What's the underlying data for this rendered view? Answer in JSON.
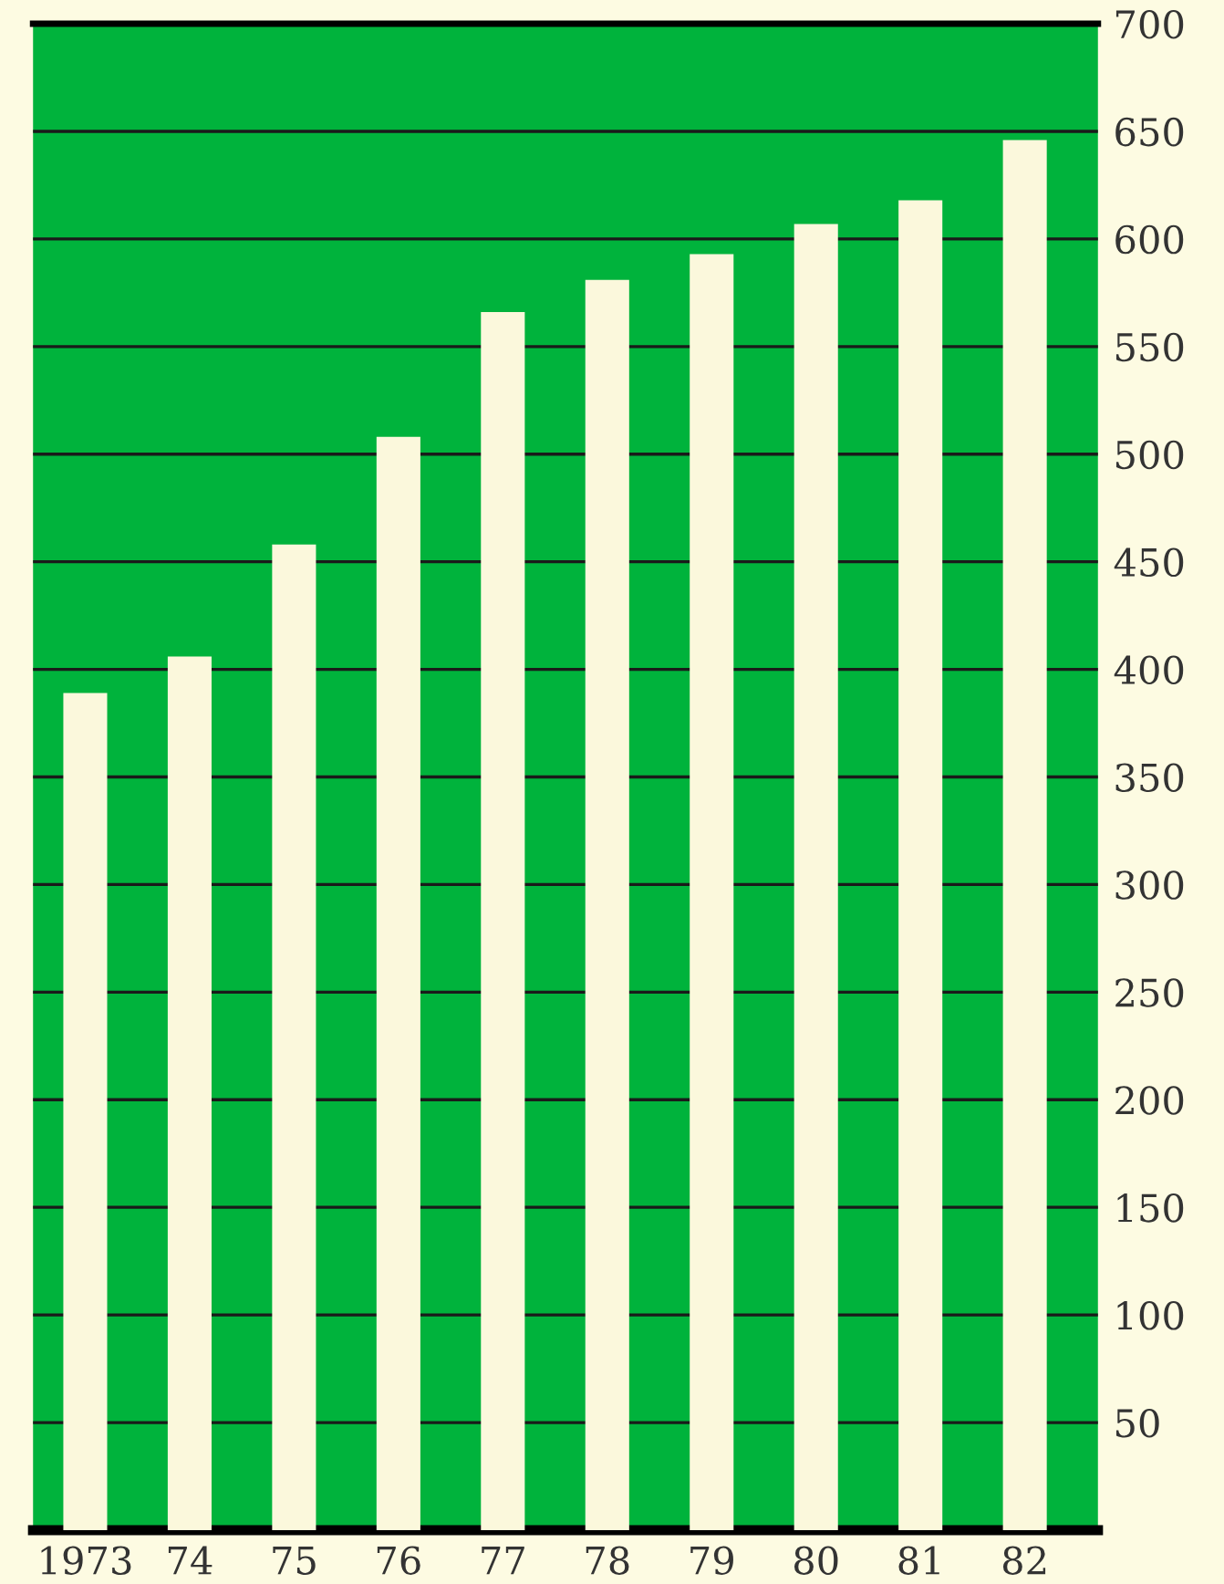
{
  "chart_data": {
    "type": "bar",
    "categories": [
      "1973",
      "74",
      "75",
      "76",
      "77",
      "78",
      "79",
      "80",
      "81",
      "82"
    ],
    "values": [
      389,
      406,
      458,
      508,
      566,
      581,
      593,
      607,
      618,
      646
    ],
    "color": "#fbf8dc",
    "ylim": [
      0,
      700
    ],
    "yticks": [
      {
        "value": 0,
        "label": null
      },
      50,
      100,
      150,
      200,
      250,
      300,
      350,
      400,
      450,
      500,
      550,
      600,
      650,
      700
    ],
    "grid": "y",
    "legend": false
  }
}
